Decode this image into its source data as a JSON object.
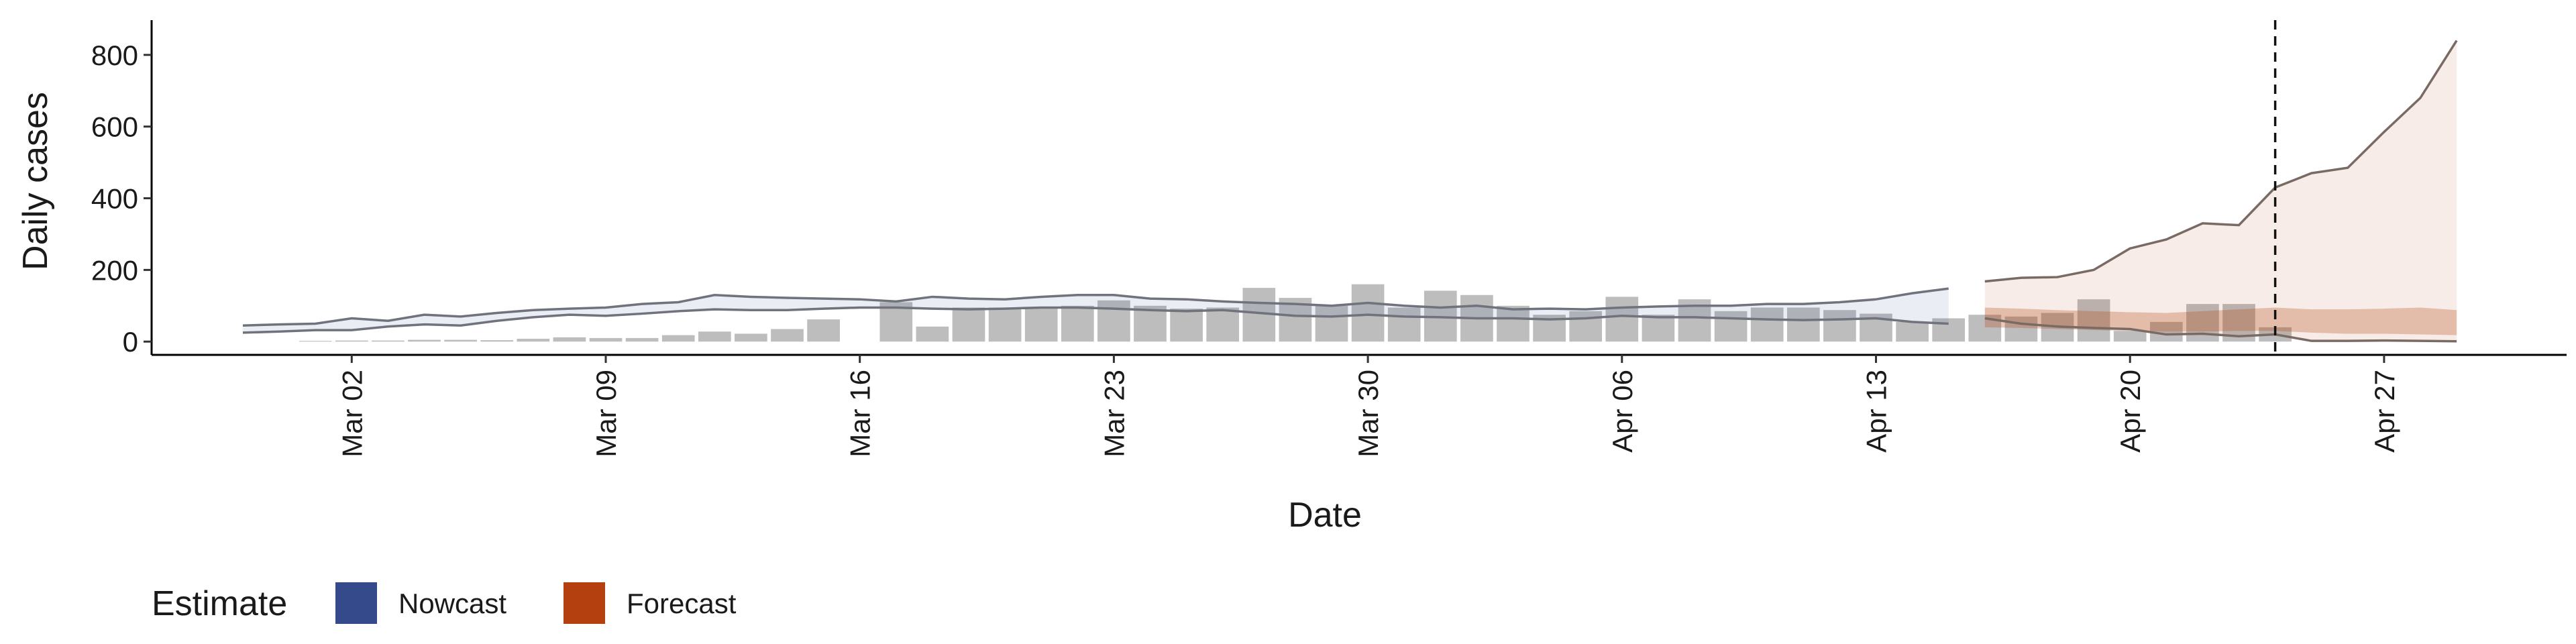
{
  "chart_data": {
    "type": "bar",
    "x_label": "Date",
    "y_label": "Daily cases",
    "ylim": [
      -37,
      897
    ],
    "yticks": [
      0,
      200,
      400,
      600,
      800
    ],
    "categories": [
      "Feb 28",
      "Feb 29",
      "Mar 01",
      "Mar 02",
      "Mar 03",
      "Mar 04",
      "Mar 05",
      "Mar 06",
      "Mar 07",
      "Mar 08",
      "Mar 09",
      "Mar 10",
      "Mar 11",
      "Mar 12",
      "Mar 13",
      "Mar 14",
      "Mar 15",
      "Mar 16",
      "Mar 17",
      "Mar 18",
      "Mar 19",
      "Mar 20",
      "Mar 21",
      "Mar 22",
      "Mar 23",
      "Mar 24",
      "Mar 25",
      "Mar 26",
      "Mar 27",
      "Mar 28",
      "Mar 29",
      "Mar 30",
      "Mar 31",
      "Apr 01",
      "Apr 02",
      "Apr 03",
      "Apr 04",
      "Apr 05",
      "Apr 06",
      "Apr 07",
      "Apr 08",
      "Apr 09",
      "Apr 10",
      "Apr 11",
      "Apr 12",
      "Apr 13",
      "Apr 14",
      "Apr 15",
      "Apr 16",
      "Apr 17",
      "Apr 18",
      "Apr 19",
      "Apr 20",
      "Apr 21",
      "Apr 22",
      "Apr 23",
      "Apr 24",
      "Apr 25",
      "Apr 26",
      "Apr 27",
      "Apr 28",
      "Apr 29"
    ],
    "xticks": [
      "Mar 02",
      "Mar 09",
      "Mar 16",
      "Mar 23",
      "Mar 30",
      "Apr 06",
      "Apr 13",
      "Apr 20",
      "Apr 27"
    ],
    "values": [
      null,
      null,
      2,
      3,
      3,
      5,
      5,
      4,
      8,
      12,
      10,
      10,
      18,
      28,
      22,
      35,
      62,
      0,
      110,
      42,
      95,
      95,
      95,
      100,
      115,
      100,
      92,
      95,
      150,
      122,
      100,
      160,
      95,
      142,
      130,
      100,
      75,
      85,
      125,
      75,
      118,
      85,
      95,
      95,
      88,
      78,
      55,
      65,
      75,
      70,
      80,
      118,
      30,
      55,
      105,
      105,
      40,
      null,
      null,
      null,
      null,
      null
    ],
    "color": "#bdbdbd",
    "vline": "Apr 24",
    "legend_title": "Estimate",
    "series": [
      {
        "name": "Nowcast",
        "color": "#354a8a",
        "upper": [
          45,
          48,
          50,
          65,
          58,
          75,
          70,
          80,
          88,
          92,
          95,
          105,
          110,
          130,
          125,
          122,
          120,
          118,
          112,
          125,
          120,
          118,
          125,
          130,
          130,
          120,
          118,
          112,
          108,
          105,
          100,
          108,
          100,
          95,
          100,
          90,
          92,
          90,
          95,
          98,
          100,
          100,
          105,
          105,
          110,
          118,
          135,
          148,
          null,
          null,
          null,
          null,
          null,
          null,
          null,
          null,
          null,
          null,
          null,
          null,
          null,
          null
        ],
        "lower": [
          25,
          28,
          32,
          32,
          42,
          48,
          45,
          58,
          68,
          75,
          72,
          78,
          85,
          90,
          88,
          88,
          92,
          95,
          95,
          92,
          90,
          92,
          95,
          95,
          92,
          88,
          85,
          88,
          80,
          72,
          70,
          75,
          70,
          68,
          65,
          65,
          62,
          65,
          72,
          68,
          68,
          65,
          62,
          60,
          62,
          65,
          55,
          50,
          null,
          null,
          null,
          null,
          null,
          null,
          null,
          null,
          null,
          null,
          null,
          null,
          null,
          null
        ]
      },
      {
        "name": "Forecast",
        "color": "#b5400f",
        "upper": [
          null,
          null,
          null,
          null,
          null,
          null,
          null,
          null,
          null,
          null,
          null,
          null,
          null,
          null,
          null,
          null,
          null,
          null,
          null,
          null,
          null,
          null,
          null,
          null,
          null,
          null,
          null,
          null,
          null,
          null,
          null,
          null,
          null,
          null,
          null,
          null,
          null,
          null,
          null,
          null,
          null,
          null,
          null,
          null,
          null,
          null,
          null,
          null,
          168,
          178,
          180,
          200,
          260,
          285,
          330,
          325,
          430,
          470,
          485,
          585,
          680,
          840
        ],
        "lower": [
          null,
          null,
          null,
          null,
          null,
          null,
          null,
          null,
          null,
          null,
          null,
          null,
          null,
          null,
          null,
          null,
          null,
          null,
          null,
          null,
          null,
          null,
          null,
          null,
          null,
          null,
          null,
          null,
          null,
          null,
          null,
          null,
          null,
          null,
          null,
          null,
          null,
          null,
          null,
          null,
          null,
          null,
          null,
          null,
          null,
          null,
          null,
          null,
          65,
          50,
          42,
          38,
          35,
          20,
          22,
          15,
          20,
          2,
          2,
          3,
          2,
          1
        ],
        "inner_upper": [
          null,
          null,
          null,
          null,
          null,
          null,
          null,
          null,
          null,
          null,
          null,
          null,
          null,
          null,
          null,
          null,
          null,
          null,
          null,
          null,
          null,
          null,
          null,
          null,
          null,
          null,
          null,
          null,
          null,
          null,
          null,
          null,
          null,
          null,
          null,
          null,
          null,
          null,
          null,
          null,
          null,
          null,
          null,
          null,
          null,
          null,
          null,
          null,
          95,
          92,
          88,
          85,
          82,
          80,
          85,
          90,
          95,
          90,
          90,
          92,
          95,
          88
        ],
        "inner_lower": [
          null,
          null,
          null,
          null,
          null,
          null,
          null,
          null,
          null,
          null,
          null,
          null,
          null,
          null,
          null,
          null,
          null,
          null,
          null,
          null,
          null,
          null,
          null,
          null,
          null,
          null,
          null,
          null,
          null,
          null,
          null,
          null,
          null,
          null,
          null,
          null,
          null,
          null,
          null,
          null,
          null,
          null,
          null,
          null,
          null,
          null,
          null,
          null,
          40,
          38,
          35,
          32,
          30,
          28,
          28,
          30,
          30,
          25,
          22,
          22,
          20,
          18
        ]
      }
    ]
  }
}
